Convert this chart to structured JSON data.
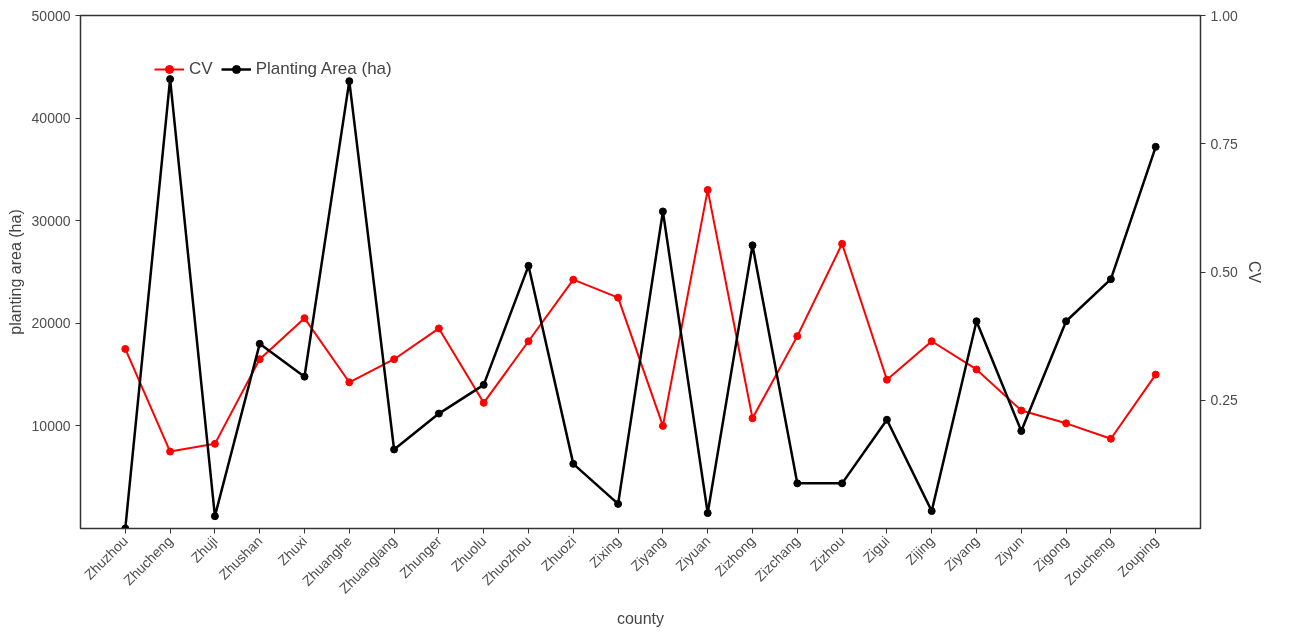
{
  "chart_data": {
    "type": "line",
    "xlabel": "county",
    "ylabel": "planting area (ha)",
    "y2label": "CV",
    "categories": [
      "Zhuzhou",
      "Zhucheng",
      "Zhuji",
      "Zhushan",
      "Zhuxi",
      "Zhuanghe",
      "Zhuanglang",
      "Zhunger",
      "Zhuolu",
      "Zhuozhou",
      "Zhuozi",
      "Zixing",
      "Ziyang",
      "Ziyuan",
      "Zizhong",
      "Zizchang",
      "Zizhou",
      "Zigui",
      "Zijing",
      "Ziyang",
      "Ziyun",
      "Zigong",
      "Zoucheng",
      "Zouping"
    ],
    "series": [
      {
        "name": "CV",
        "color": "#ff0000",
        "axis": "y2",
        "values": [
          0.35,
          0.15,
          0.165,
          0.33,
          0.41,
          0.285,
          0.33,
          0.39,
          0.245,
          0.365,
          0.485,
          0.45,
          0.2,
          0.66,
          0.215,
          0.375,
          0.555,
          0.29,
          0.365,
          0.31,
          0.23,
          0.205,
          0.175,
          0.3
        ]
      },
      {
        "name": "Planting Area (ha)",
        "color": "#000000",
        "values": [
          0,
          43800,
          1200,
          18000,
          14800,
          43600,
          7700,
          11200,
          14000,
          25600,
          6300,
          2400,
          30900,
          1500,
          27600,
          4400,
          4400,
          10600,
          1700,
          20200,
          9500,
          20200,
          24300,
          37200
        ]
      }
    ],
    "ylim": [
      0,
      50000
    ],
    "yticks": [
      10000,
      20000,
      30000,
      40000,
      50000
    ],
    "y2lim": [
      0,
      1
    ],
    "y2ticks": [
      {
        "value": 0.25,
        "label": "0.25"
      },
      {
        "value": 0.5,
        "label": "0.50"
      },
      {
        "value": 0.75,
        "label": "0.75"
      },
      {
        "value": 1,
        "label": "1.00"
      }
    ],
    "grid": false,
    "legend": "top left",
    "marker": "circle",
    "line_style": "solid"
  }
}
